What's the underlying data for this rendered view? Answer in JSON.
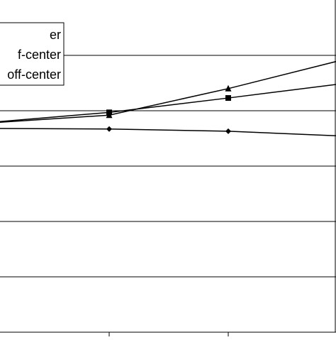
{
  "chart_data": {
    "type": "line",
    "x": [
      0,
      1,
      2,
      3
    ],
    "xlim": [
      0.083,
      2.905
    ],
    "xticks": [
      1,
      2
    ],
    "ylim": [
      0,
      6
    ],
    "yticks": [
      1,
      2,
      3,
      4,
      5
    ],
    "grid": true,
    "series": [
      {
        "name": "er",
        "color": "#000000",
        "marker": "diamond",
        "values": [
          3.68,
          3.67,
          3.63,
          3.54
        ]
      },
      {
        "name": "f-center",
        "color": "#000000",
        "marker": "square",
        "values": [
          3.79,
          3.97,
          4.23,
          4.5
        ]
      },
      {
        "name": "off-center",
        "color": "#000000",
        "marker": "triangle",
        "values": [
          3.78,
          3.92,
          4.4,
          4.94
        ]
      }
    ]
  }
}
